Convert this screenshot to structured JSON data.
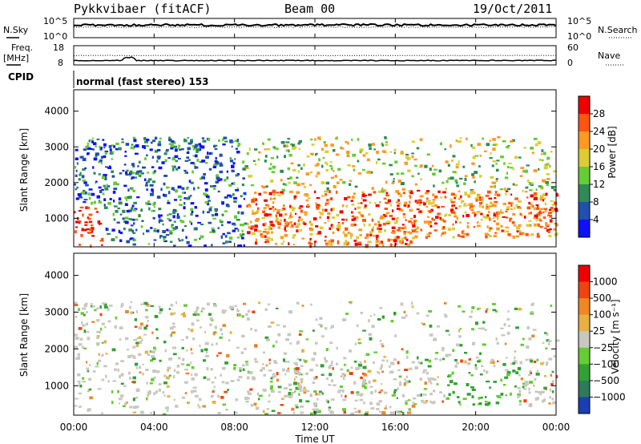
{
  "header": {
    "station": "Pykkvibaer (fitACF)",
    "beam": "Beam 00",
    "date": "19/Oct/2011"
  },
  "noise_panel": {
    "left_label": "N.Sky",
    "right_label": "N.Search",
    "left_ticks": [
      "10^5",
      "10^0"
    ],
    "right_ticks": [
      "10^5",
      "10^0"
    ]
  },
  "freq_panel": {
    "left_label": "Freq.",
    "left_unit": "[MHz]",
    "right_label": "Nave",
    "left_ticks": [
      "18",
      "8"
    ],
    "right_ticks": [
      "60",
      "0"
    ]
  },
  "cpid": {
    "label": "CPID",
    "text": "normal (fast stereo) 153"
  },
  "chart_data": [
    {
      "type": "heatmap",
      "name": "power",
      "ylabel": "Slant Range [km]",
      "y_ticks": [
        "4000",
        "3000",
        "2000",
        "1000"
      ],
      "ylim": [
        200,
        4600
      ],
      "xlim_hours": [
        0,
        24
      ],
      "colorbar_label": "Power [dB]",
      "colorbar_ticks": [
        "28",
        "24",
        "20",
        "16",
        "12",
        "8",
        "4"
      ],
      "colorbar_colors": [
        "#1010ff",
        "#2050b0",
        "#2e8b57",
        "#66cc33",
        "#ddcc33",
        "#ff9922",
        "#ff5511",
        "#ee0000"
      ]
    },
    {
      "type": "heatmap",
      "name": "velocity",
      "ylabel": "Slant Range [km]",
      "y_ticks": [
        "4000",
        "3000",
        "2000",
        "1000"
      ],
      "ylim": [
        200,
        4600
      ],
      "xlim_hours": [
        0,
        24
      ],
      "colorbar_label": "Velocity [m s⁻¹]",
      "colorbar_ticks": [
        "1000",
        "500",
        "100",
        "25",
        "−25",
        "−100",
        "−500",
        "−1000"
      ],
      "colorbar_colors": [
        "#1a3fb0",
        "#2f7a5a",
        "#33a033",
        "#66cc33",
        "#c8c8c0",
        "#e8b040",
        "#ee8822",
        "#ee4411",
        "#ee0000"
      ]
    }
  ],
  "x_axis": {
    "label": "Time UT",
    "ticks": [
      "00:00",
      "04:00",
      "08:00",
      "12:00",
      "16:00",
      "20:00",
      "00:00"
    ]
  }
}
